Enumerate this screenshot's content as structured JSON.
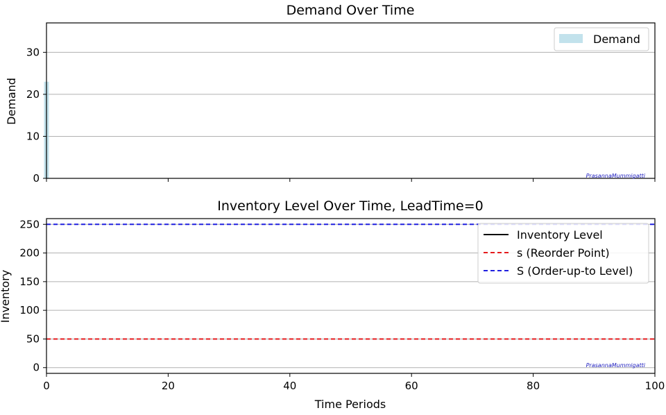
{
  "watermark": "PrasannaMummigatti",
  "chart_data": [
    {
      "type": "bar",
      "title": "Demand Over Time",
      "xlabel": "",
      "ylabel": "Demand",
      "xlim": [
        0,
        100
      ],
      "ylim": [
        0,
        37
      ],
      "yticks": [
        0,
        10,
        20,
        30
      ],
      "xticks": [
        0,
        20,
        40,
        60,
        80,
        100
      ],
      "grid": "y",
      "legend_position": "top-right",
      "bar_color": "#add8e6",
      "series": [
        {
          "name": "Demand",
          "x": [
            0
          ],
          "values": [
            23
          ]
        }
      ]
    },
    {
      "type": "line",
      "title": "Inventory Level Over Time, LeadTime=0",
      "xlabel": "Time Periods",
      "ylabel": "Inventory",
      "xlim": [
        0,
        100
      ],
      "ylim": [
        -10,
        260
      ],
      "yticks": [
        0,
        50,
        100,
        150,
        200,
        250
      ],
      "xticks": [
        0,
        20,
        40,
        60,
        80,
        100
      ],
      "grid": "y",
      "legend_position": "top-right",
      "series": [
        {
          "name": "Inventory Level",
          "color": "#000000",
          "style": "solid",
          "x": [],
          "values": []
        },
        {
          "name": "s (Reorder Point)",
          "color": "#e41a1c",
          "style": "dashed",
          "constant": 50
        },
        {
          "name": "S (Order-up-to Level)",
          "color": "#1f1fe0",
          "style": "dashed",
          "constant": 250
        }
      ]
    }
  ]
}
